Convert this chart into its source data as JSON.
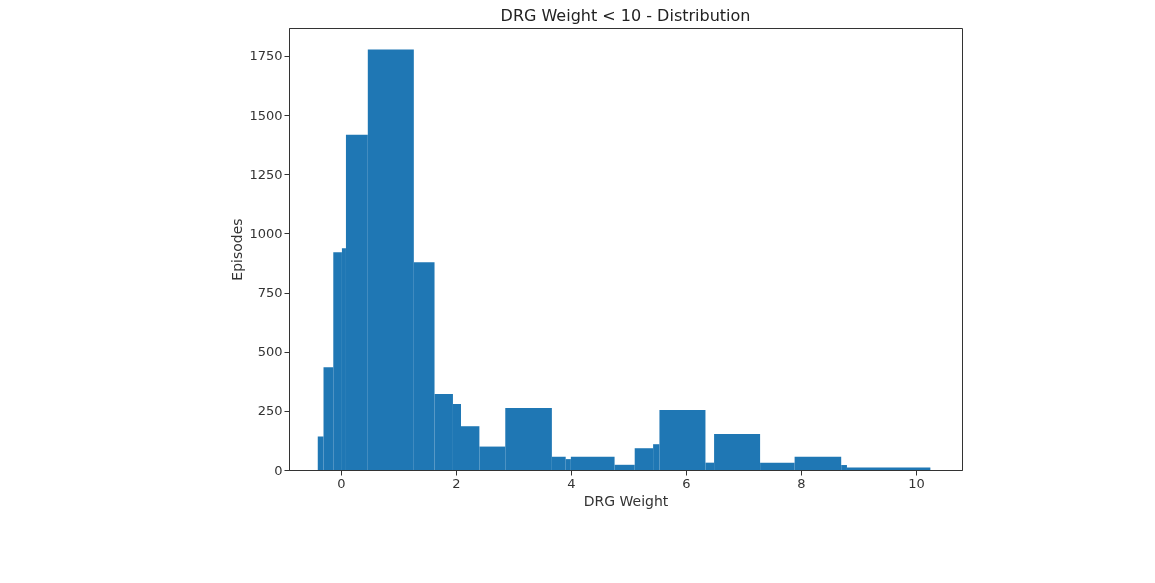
{
  "chart_data": {
    "type": "histogram",
    "title": "DRG Weight < 10 - Distribution",
    "xlabel": "DRG Weight",
    "ylabel": "Episodes",
    "color": "#1f77b4",
    "bins": [
      -0.4,
      -0.3,
      -0.13,
      0.02,
      0.09,
      0.47,
      1.27,
      1.63,
      1.95,
      2.09,
      2.41,
      2.86,
      3.67,
      3.91,
      4.0,
      4.76,
      5.11,
      5.43,
      5.54,
      6.34,
      6.49,
      7.29,
      7.89,
      8.7,
      8.8,
      10.25
    ],
    "values": [
      142,
      434,
      920,
      937,
      1417,
      1777,
      878,
      321,
      279,
      185,
      99,
      262,
      56,
      46,
      56,
      22,
      92,
      109,
      254,
      31,
      152,
      31,
      56,
      21,
      11
    ],
    "xlim": [
      -0.9,
      10.8
    ],
    "ylim": [
      0,
      1868
    ],
    "xticks": [
      0,
      2,
      4,
      6,
      8,
      10
    ],
    "yticks": [
      0,
      250,
      500,
      750,
      1000,
      1250,
      1500,
      1750
    ],
    "grid": false
  }
}
